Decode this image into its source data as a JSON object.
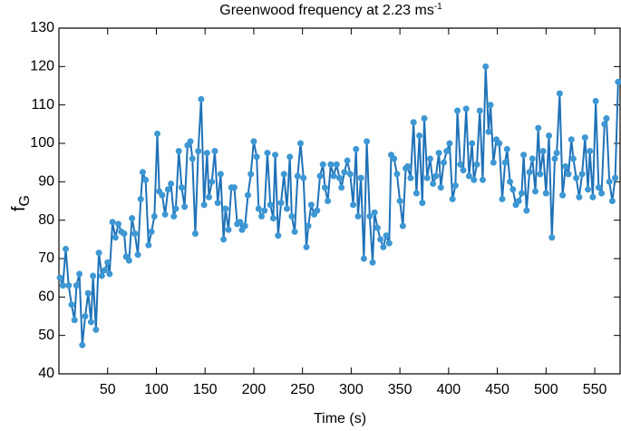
{
  "chart_data": {
    "type": "line",
    "title": "Greenwood frequency at 2.23 ms",
    "title_superscript": "-1",
    "xlabel": "Time (s)",
    "ylabel": "f",
    "ylabel_subscript": "G",
    "x": [
      1,
      4,
      7,
      10,
      13,
      16,
      18,
      21,
      24,
      27,
      30,
      33,
      35,
      38,
      41,
      44,
      47,
      50,
      52,
      55,
      58,
      61,
      64,
      67,
      69,
      72,
      75,
      78,
      81,
      84,
      86,
      89,
      92,
      95,
      98,
      101,
      103,
      106,
      109,
      112,
      115,
      118,
      120,
      123,
      126,
      129,
      132,
      135,
      137,
      140,
      143,
      146,
      149,
      152,
      154,
      157,
      160,
      163,
      166,
      169,
      171,
      174,
      177,
      180,
      183,
      186,
      188,
      191,
      194,
      197,
      200,
      203,
      205,
      208,
      211,
      214,
      217,
      220,
      222,
      225,
      228,
      231,
      234,
      237,
      239,
      242,
      245,
      248,
      251,
      254,
      256,
      259,
      262,
      265,
      268,
      271,
      273,
      276,
      279,
      282,
      285,
      288,
      290,
      293,
      296,
      299,
      302,
      305,
      307,
      310,
      313,
      316,
      319,
      322,
      324,
      327,
      330,
      333,
      336,
      339,
      341,
      344,
      347,
      350,
      353,
      356,
      358,
      361,
      364,
      367,
      370,
      373,
      375,
      378,
      381,
      384,
      387,
      390,
      392,
      395,
      398,
      401,
      404,
      407,
      409,
      412,
      415,
      418,
      421,
      424,
      426,
      429,
      432,
      435,
      438,
      441,
      443,
      446,
      449,
      452,
      455,
      458,
      460,
      463,
      466,
      469,
      472,
      475,
      477,
      480,
      483,
      486,
      489,
      492,
      494,
      497,
      500,
      503,
      506,
      509,
      511,
      514,
      517,
      520,
      523,
      526,
      528,
      531,
      534,
      537,
      540,
      543,
      545,
      548,
      551,
      554,
      557,
      560,
      562,
      565,
      568,
      571,
      574
    ],
    "series": [
      {
        "name": "f_G",
        "color": "#1f72b8",
        "marker_color": "#3d97d3",
        "values": [
          65,
          63,
          72.5,
          63,
          58,
          54,
          63,
          66,
          47.5,
          55,
          61,
          53.5,
          65.5,
          51.5,
          71.5,
          65.5,
          67,
          69,
          66,
          79.5,
          75.5,
          79,
          77,
          76.5,
          70.5,
          69.5,
          80.5,
          76.5,
          71,
          85.5,
          92.5,
          90.5,
          73.5,
          77,
          81,
          102.5,
          87.5,
          86.5,
          81.5,
          88,
          89.5,
          81,
          83,
          98,
          88.5,
          83.5,
          99.5,
          100.5,
          96,
          76.5,
          98,
          111.5,
          84,
          97.5,
          86,
          90,
          98,
          84.5,
          92,
          75,
          83,
          77.5,
          88.5,
          88.5,
          79,
          79.5,
          77.5,
          78.5,
          86.5,
          92,
          100.5,
          96.5,
          83,
          81,
          82.5,
          97.5,
          84,
          80.5,
          97,
          76,
          84.5,
          92,
          83,
          96.5,
          81,
          77,
          91.5,
          100,
          91,
          73,
          78.5,
          84,
          81.5,
          82.5,
          91.5,
          94.5,
          88.5,
          85,
          94.5,
          91.5,
          94.5,
          91,
          88.5,
          92.5,
          95.5,
          92,
          84,
          98.5,
          81,
          91,
          70,
          100.5,
          81,
          69,
          82,
          78,
          75,
          73,
          76,
          74,
          97,
          96,
          92,
          85,
          78.5,
          93.5,
          94,
          91,
          105.5,
          87,
          102,
          84.5,
          106.5,
          91,
          96,
          89.5,
          91.5,
          97.5,
          88.5,
          95,
          98,
          100,
          85.5,
          89,
          108.5,
          94.5,
          93,
          109,
          91.5,
          100,
          90.5,
          94.5,
          108.5,
          90.5,
          120,
          103,
          110,
          95,
          101,
          100,
          85.5,
          95,
          98.5,
          90,
          88,
          84,
          85,
          87,
          97,
          82.5,
          92.5,
          96,
          87.5,
          104,
          92,
          98,
          87,
          102,
          75.5,
          96,
          97.5,
          113,
          86.5,
          94,
          92,
          101,
          96,
          91,
          86,
          92,
          101.5,
          88,
          98,
          86,
          111,
          88.5,
          87,
          105,
          106.5,
          90,
          85,
          91,
          116
        ]
      }
    ],
    "xlim": [
      0,
      576
    ],
    "xticks": [
      50,
      100,
      150,
      200,
      250,
      300,
      350,
      400,
      450,
      500,
      550
    ],
    "ylim": [
      40,
      130
    ],
    "yticks": [
      40,
      50,
      60,
      70,
      80,
      90,
      100,
      110,
      120,
      130
    ]
  }
}
